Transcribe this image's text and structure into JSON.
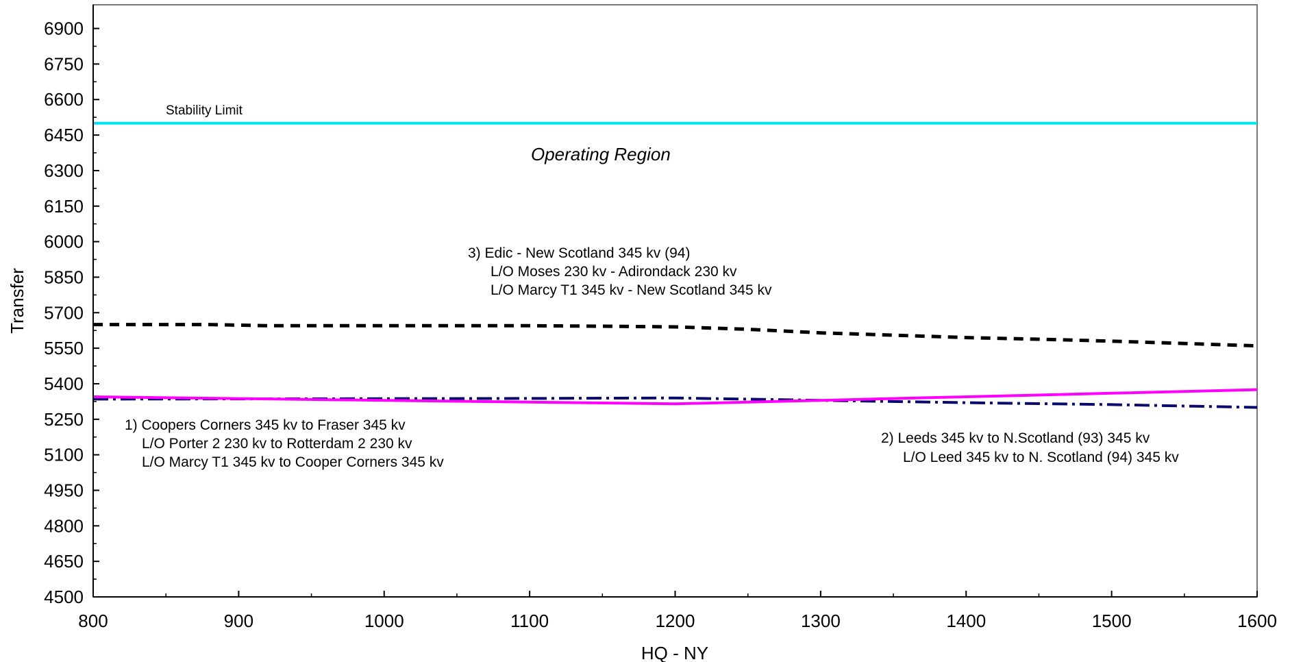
{
  "chart_data": {
    "type": "line",
    "xlabel": "HQ - NY",
    "ylabel": "Transfer",
    "xlim": [
      800,
      1600
    ],
    "ylim": [
      4500,
      7000
    ],
    "x_ticks": [
      800,
      900,
      1000,
      1100,
      1200,
      1300,
      1400,
      1500,
      1600
    ],
    "y_ticks": [
      4500,
      4650,
      4800,
      4950,
      5100,
      5250,
      5400,
      5550,
      5700,
      5850,
      6000,
      6150,
      6300,
      6450,
      6600,
      6750,
      6900
    ],
    "grid": false,
    "series": [
      {
        "key": "stability",
        "color": "#00e5f0",
        "dash": "solid",
        "x": [
          800,
          1600
        ],
        "y": [
          6500,
          6500
        ]
      },
      {
        "key": "edic",
        "color": "#000000",
        "dash": "dash",
        "x": [
          800,
          880,
          920,
          1000,
          1100,
          1150,
          1200,
          1250,
          1300,
          1350,
          1400,
          1450,
          1500,
          1550,
          1600
        ],
        "y": [
          5650,
          5650,
          5645,
          5645,
          5645,
          5643,
          5640,
          5630,
          5615,
          5605,
          5595,
          5588,
          5580,
          5570,
          5560
        ]
      },
      {
        "key": "coopers",
        "color": "#0a0a6e",
        "dash": "dashdot",
        "x": [
          800,
          900,
          1000,
          1100,
          1200,
          1300,
          1400,
          1500,
          1600
        ],
        "y": [
          5335,
          5336,
          5337,
          5338,
          5340,
          5330,
          5320,
          5312,
          5300
        ]
      },
      {
        "key": "leeds",
        "color": "#ff00ff",
        "dash": "solid",
        "x": [
          800,
          1000,
          1200,
          1300,
          1400,
          1500,
          1600
        ],
        "y": [
          5345,
          5330,
          5315,
          5330,
          5345,
          5360,
          5375
        ]
      }
    ],
    "annotations": {
      "stability_label": "Stability Limit",
      "region_label": "Operating Region",
      "edic_lines": [
        "3) Edic - New Scotland  345 kv (94)",
        "L/O Moses 230 kv - Adirondack  230 kv",
        "L/O Marcy T1  345  kv - New Scotland 345 kv"
      ],
      "coopers_lines": [
        "1) Coopers Corners 345 kv to Fraser 345 kv",
        "L/O Porter 2  230 kv to Rotterdam 2  230 kv",
        "L/O Marcy T1  345  kv to Cooper Corners 345 kv"
      ],
      "leeds_lines": [
        "2) Leeds 345 kv to N.Scotland (93) 345 kv",
        "L/O  Leed 345 kv to N. Scotland (94) 345 kv"
      ]
    }
  }
}
